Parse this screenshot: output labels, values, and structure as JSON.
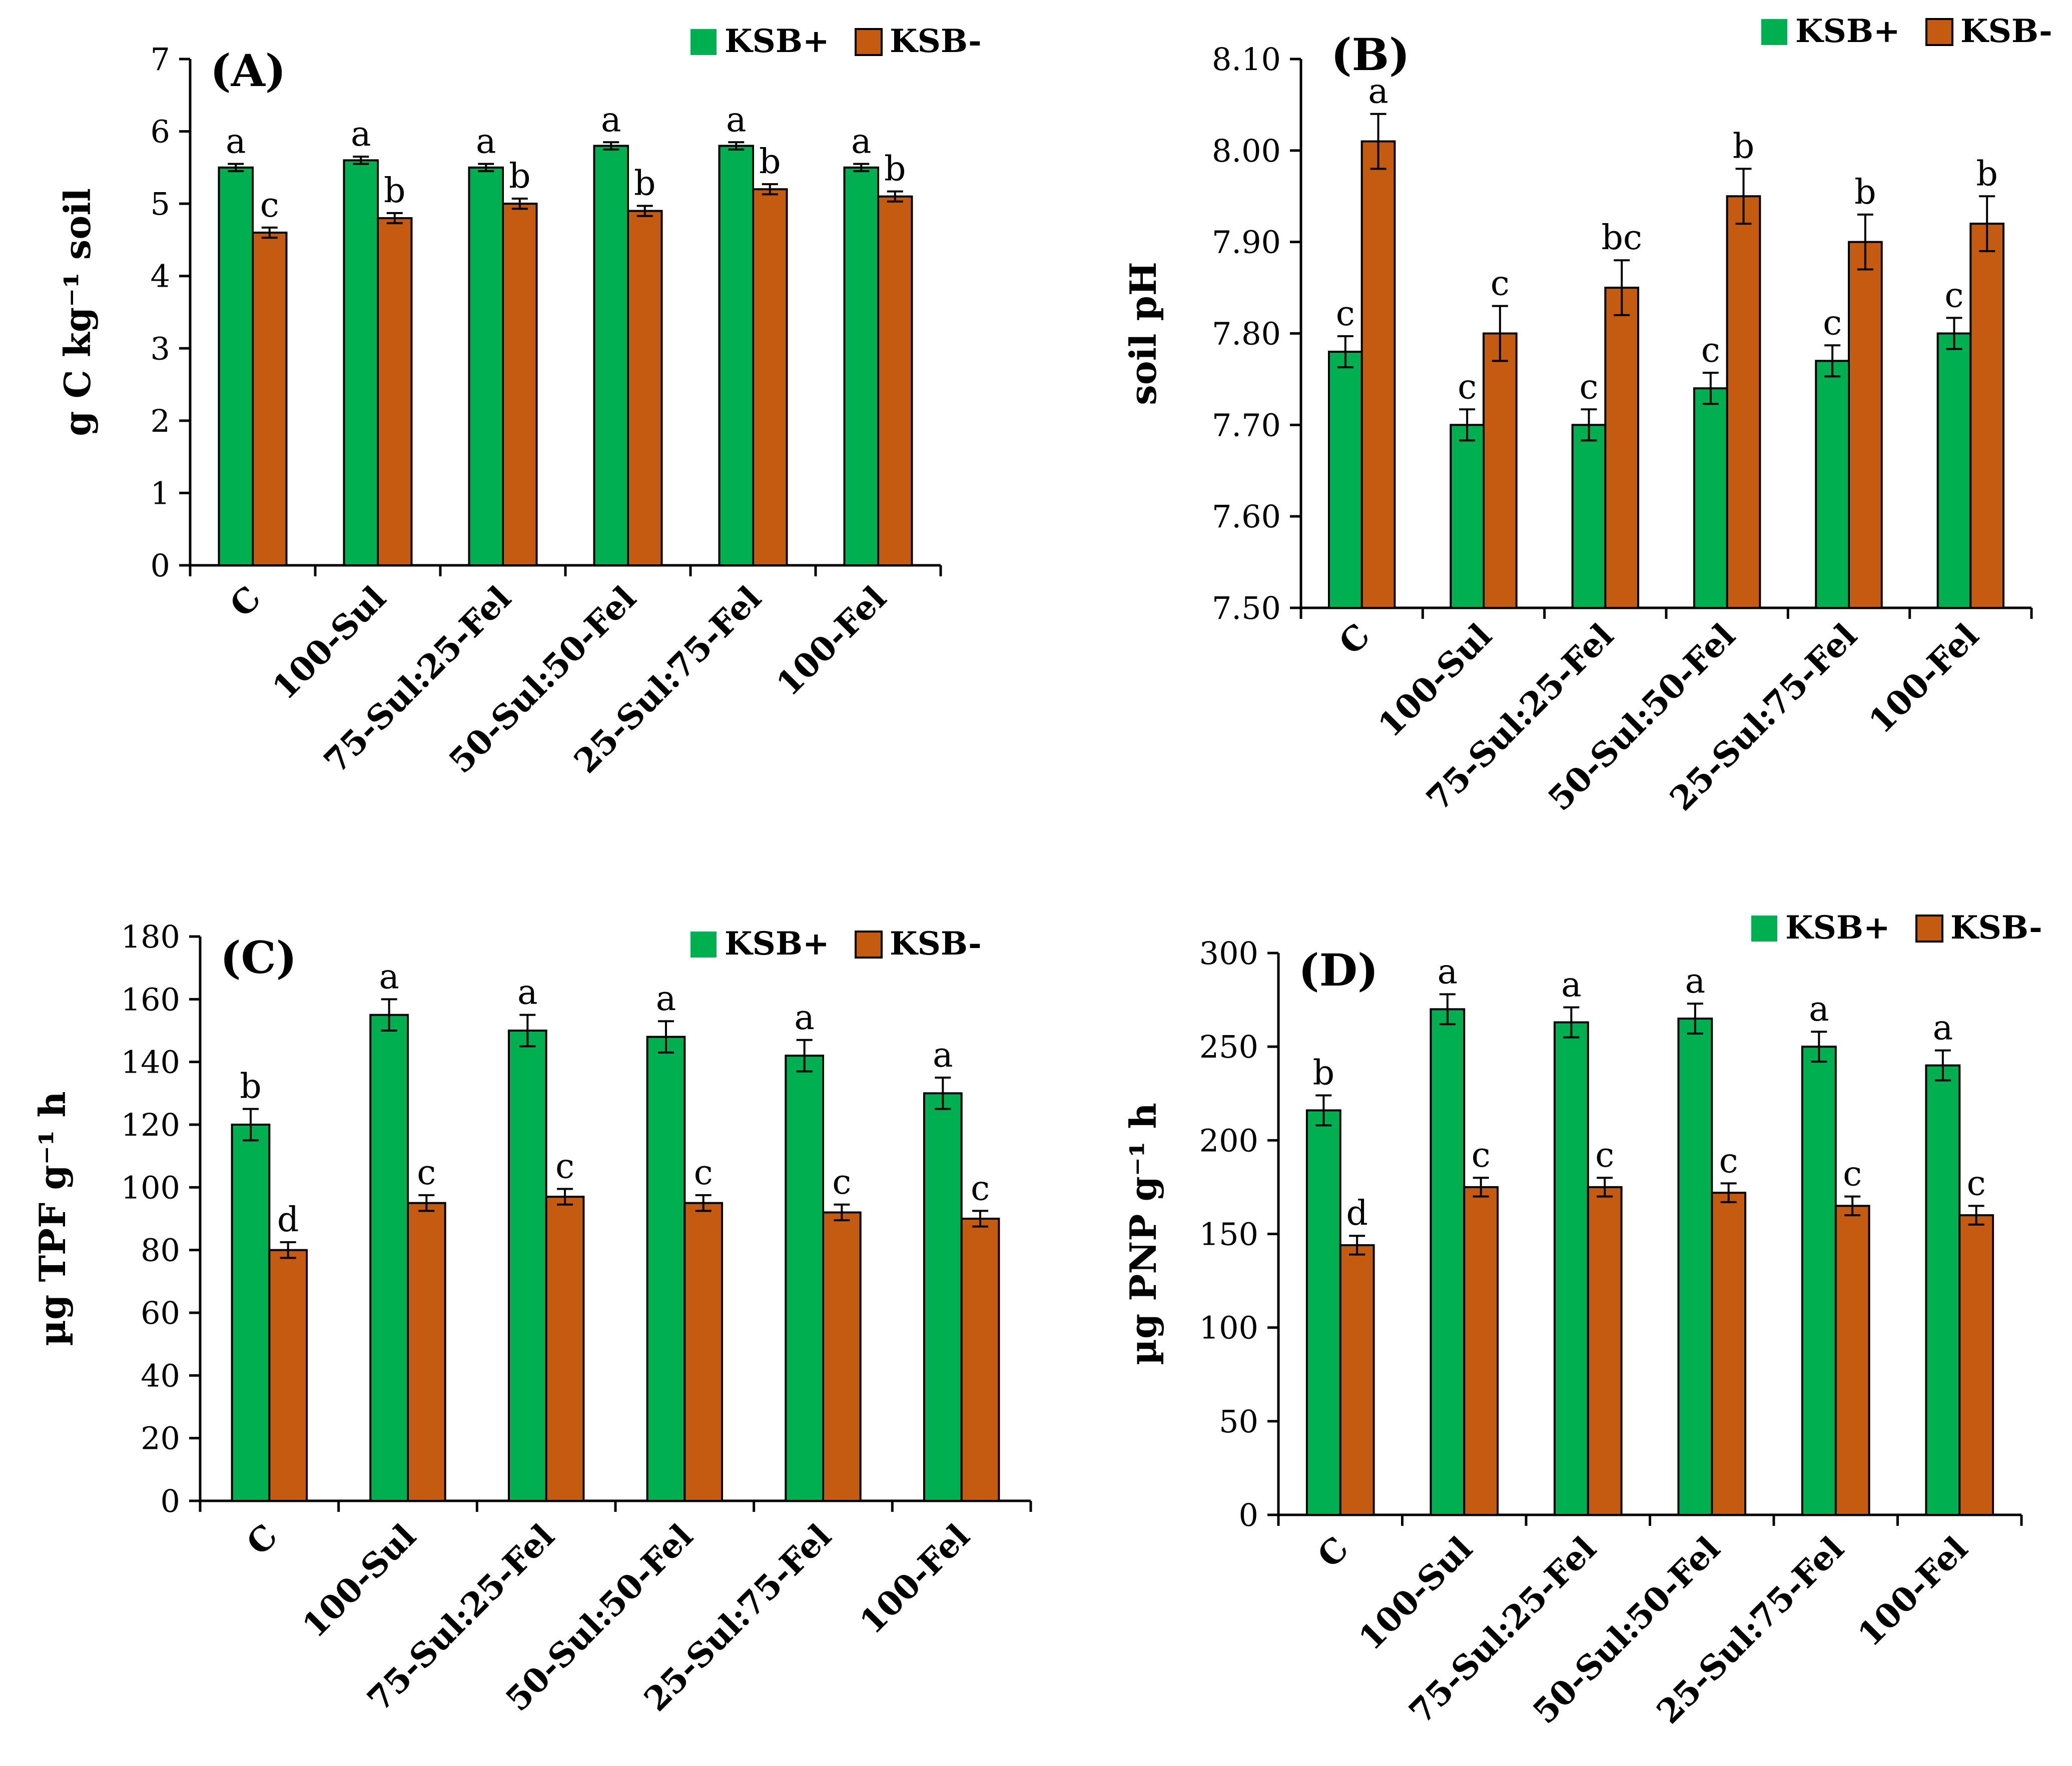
{
  "colors": {
    "ksb_plus": "#00B050",
    "ksb_minus": "#C55A11",
    "axis": "#000000"
  },
  "chart_data": [
    {
      "type": "bar",
      "panel_label": "(A)",
      "ylabel": "g C kg⁻¹ soil",
      "ylim": [
        0,
        7
      ],
      "yticks": [
        0,
        1,
        2,
        3,
        4,
        5,
        6,
        7
      ],
      "tick_labels": [
        "0",
        "1",
        "2",
        "3",
        "4",
        "5",
        "6",
        "7"
      ],
      "categories": [
        "C",
        "100-Sul",
        "75-Sul:25-Fel",
        "50-Sul:50-Fel",
        "25-Sul:75-Fel",
        "100-Fel"
      ],
      "series": [
        {
          "name": "KSB+",
          "values": [
            5.5,
            5.6,
            5.5,
            5.8,
            5.8,
            5.5
          ],
          "errors": [
            0.05,
            0.05,
            0.05,
            0.05,
            0.05,
            0.05
          ],
          "letters": [
            "a",
            "a",
            "a",
            "a",
            "a",
            "a"
          ]
        },
        {
          "name": "KSB-",
          "values": [
            4.6,
            4.8,
            5.0,
            4.9,
            5.2,
            5.1
          ],
          "errors": [
            0.07,
            0.07,
            0.07,
            0.07,
            0.07,
            0.07
          ],
          "letters": [
            "c",
            "b",
            "b",
            "b",
            "b",
            "b"
          ]
        }
      ],
      "legend": "top-right"
    },
    {
      "type": "bar",
      "panel_label": "(B)",
      "ylabel": "soil pH",
      "ylim": [
        7.5,
        8.1
      ],
      "yticks": [
        7.5,
        7.6,
        7.7,
        7.8,
        7.9,
        8.0,
        8.1
      ],
      "tick_labels": [
        "7.50",
        "7.60",
        "7.70",
        "7.80",
        "7.90",
        "8.00",
        "8.10"
      ],
      "categories": [
        "C",
        "100-Sul",
        "75-Sul:25-Fel",
        "50-Sul:50-Fel",
        "25-Sul:75-Fel",
        "100-Fel"
      ],
      "series": [
        {
          "name": "KSB+",
          "values": [
            7.78,
            7.7,
            7.7,
            7.74,
            7.77,
            7.8
          ],
          "errors": [
            0.017,
            0.017,
            0.017,
            0.017,
            0.017,
            0.017
          ],
          "letters": [
            "c",
            "c",
            "c",
            "c",
            "c",
            "c"
          ]
        },
        {
          "name": "KSB-",
          "values": [
            8.01,
            7.8,
            7.85,
            7.95,
            7.9,
            7.92
          ],
          "errors": [
            0.03,
            0.03,
            0.03,
            0.03,
            0.03,
            0.03
          ],
          "letters": [
            "a",
            "c",
            "bc",
            "b",
            "b",
            "b"
          ]
        }
      ],
      "legend": "top-right"
    },
    {
      "type": "bar",
      "panel_label": "(C)",
      "ylabel": "µg TPF g⁻¹ h",
      "ylim": [
        0,
        180
      ],
      "yticks": [
        0,
        20,
        40,
        60,
        80,
        100,
        120,
        140,
        160,
        180
      ],
      "tick_labels": [
        "0",
        "20",
        "40",
        "60",
        "80",
        "100",
        "120",
        "140",
        "160",
        "180"
      ],
      "categories": [
        "C",
        "100-Sul",
        "75-Sul:25-Fel",
        "50-Sul:50-Fel",
        "25-Sul:75-Fel",
        "100-Fel"
      ],
      "series": [
        {
          "name": "KSB+",
          "values": [
            120,
            155,
            150,
            148,
            142,
            130
          ],
          "errors": [
            5,
            5,
            5,
            5,
            5,
            5
          ],
          "letters": [
            "b",
            "a",
            "a",
            "a",
            "a",
            "a"
          ]
        },
        {
          "name": "KSB-",
          "values": [
            80,
            95,
            97,
            95,
            92,
            90
          ],
          "errors": [
            2.5,
            2.5,
            2.5,
            2.5,
            2.5,
            2.5
          ],
          "letters": [
            "d",
            "c",
            "c",
            "c",
            "c",
            "c"
          ]
        }
      ],
      "legend": "top-right"
    },
    {
      "type": "bar",
      "panel_label": "(D)",
      "ylabel": "µg PNP g⁻¹ h",
      "ylim": [
        0,
        300
      ],
      "yticks": [
        0,
        50,
        100,
        150,
        200,
        250,
        300
      ],
      "tick_labels": [
        "0",
        "50",
        "100",
        "150",
        "200",
        "250",
        "300"
      ],
      "categories": [
        "C",
        "100-Sul",
        "75-Sul:25-Fel",
        "50-Sul:50-Fel",
        "25-Sul:75-Fel",
        "100-Fel"
      ],
      "series": [
        {
          "name": "KSB+",
          "values": [
            216,
            270,
            263,
            265,
            250,
            240
          ],
          "errors": [
            8,
            8,
            8,
            8,
            8,
            8
          ],
          "letters": [
            "b",
            "a",
            "a",
            "a",
            "a",
            "a"
          ]
        },
        {
          "name": "KSB-",
          "values": [
            144,
            175,
            175,
            172,
            165,
            160
          ],
          "errors": [
            5,
            5,
            5,
            5,
            5,
            5
          ],
          "letters": [
            "d",
            "c",
            "c",
            "c",
            "c",
            "c"
          ]
        }
      ],
      "legend": "top-right"
    }
  ]
}
